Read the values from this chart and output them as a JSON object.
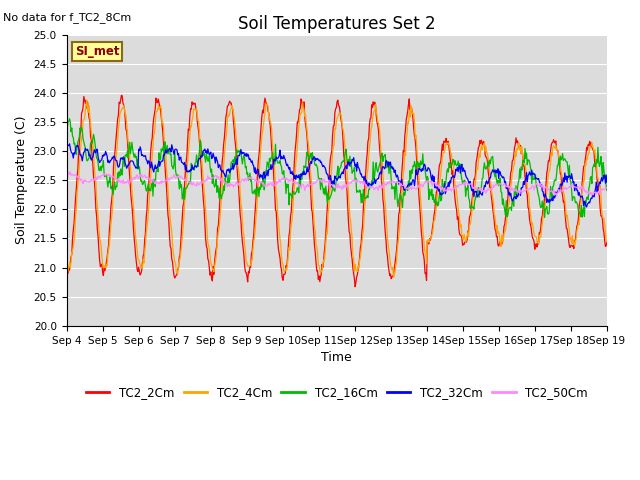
{
  "title": "Soil Temperatures Set 2",
  "subtitle": "No data for f_TC2_8Cm",
  "xlabel": "Time",
  "ylabel": "Soil Temperature (C)",
  "ylim": [
    20.0,
    25.0
  ],
  "yticks": [
    20.0,
    20.5,
    21.0,
    21.5,
    22.0,
    22.5,
    23.0,
    23.5,
    24.0,
    24.5,
    25.0
  ],
  "xtick_labels": [
    "Sep 4",
    "Sep 5",
    "Sep 6",
    "Sep 7",
    "Sep 8",
    "Sep 9",
    "Sep 10",
    "Sep 11",
    "Sep 12",
    "Sep 13",
    "Sep 14",
    "Sep 15",
    "Sep 16",
    "Sep 17",
    "Sep 18",
    "Sep 19"
  ],
  "legend_labels": [
    "TC2_2Cm",
    "TC2_4Cm",
    "TC2_16Cm",
    "TC2_32Cm",
    "TC2_50Cm"
  ],
  "line_hex": [
    "#ff0000",
    "#ffa500",
    "#00bb00",
    "#0000ff",
    "#ff88ff"
  ],
  "bg_color": "#dcdcdc",
  "annotation_text": "SI_met",
  "annotation_bg": "#ffff99",
  "annotation_border": "#8b6914",
  "figsize": [
    6.4,
    4.8
  ],
  "dpi": 100
}
